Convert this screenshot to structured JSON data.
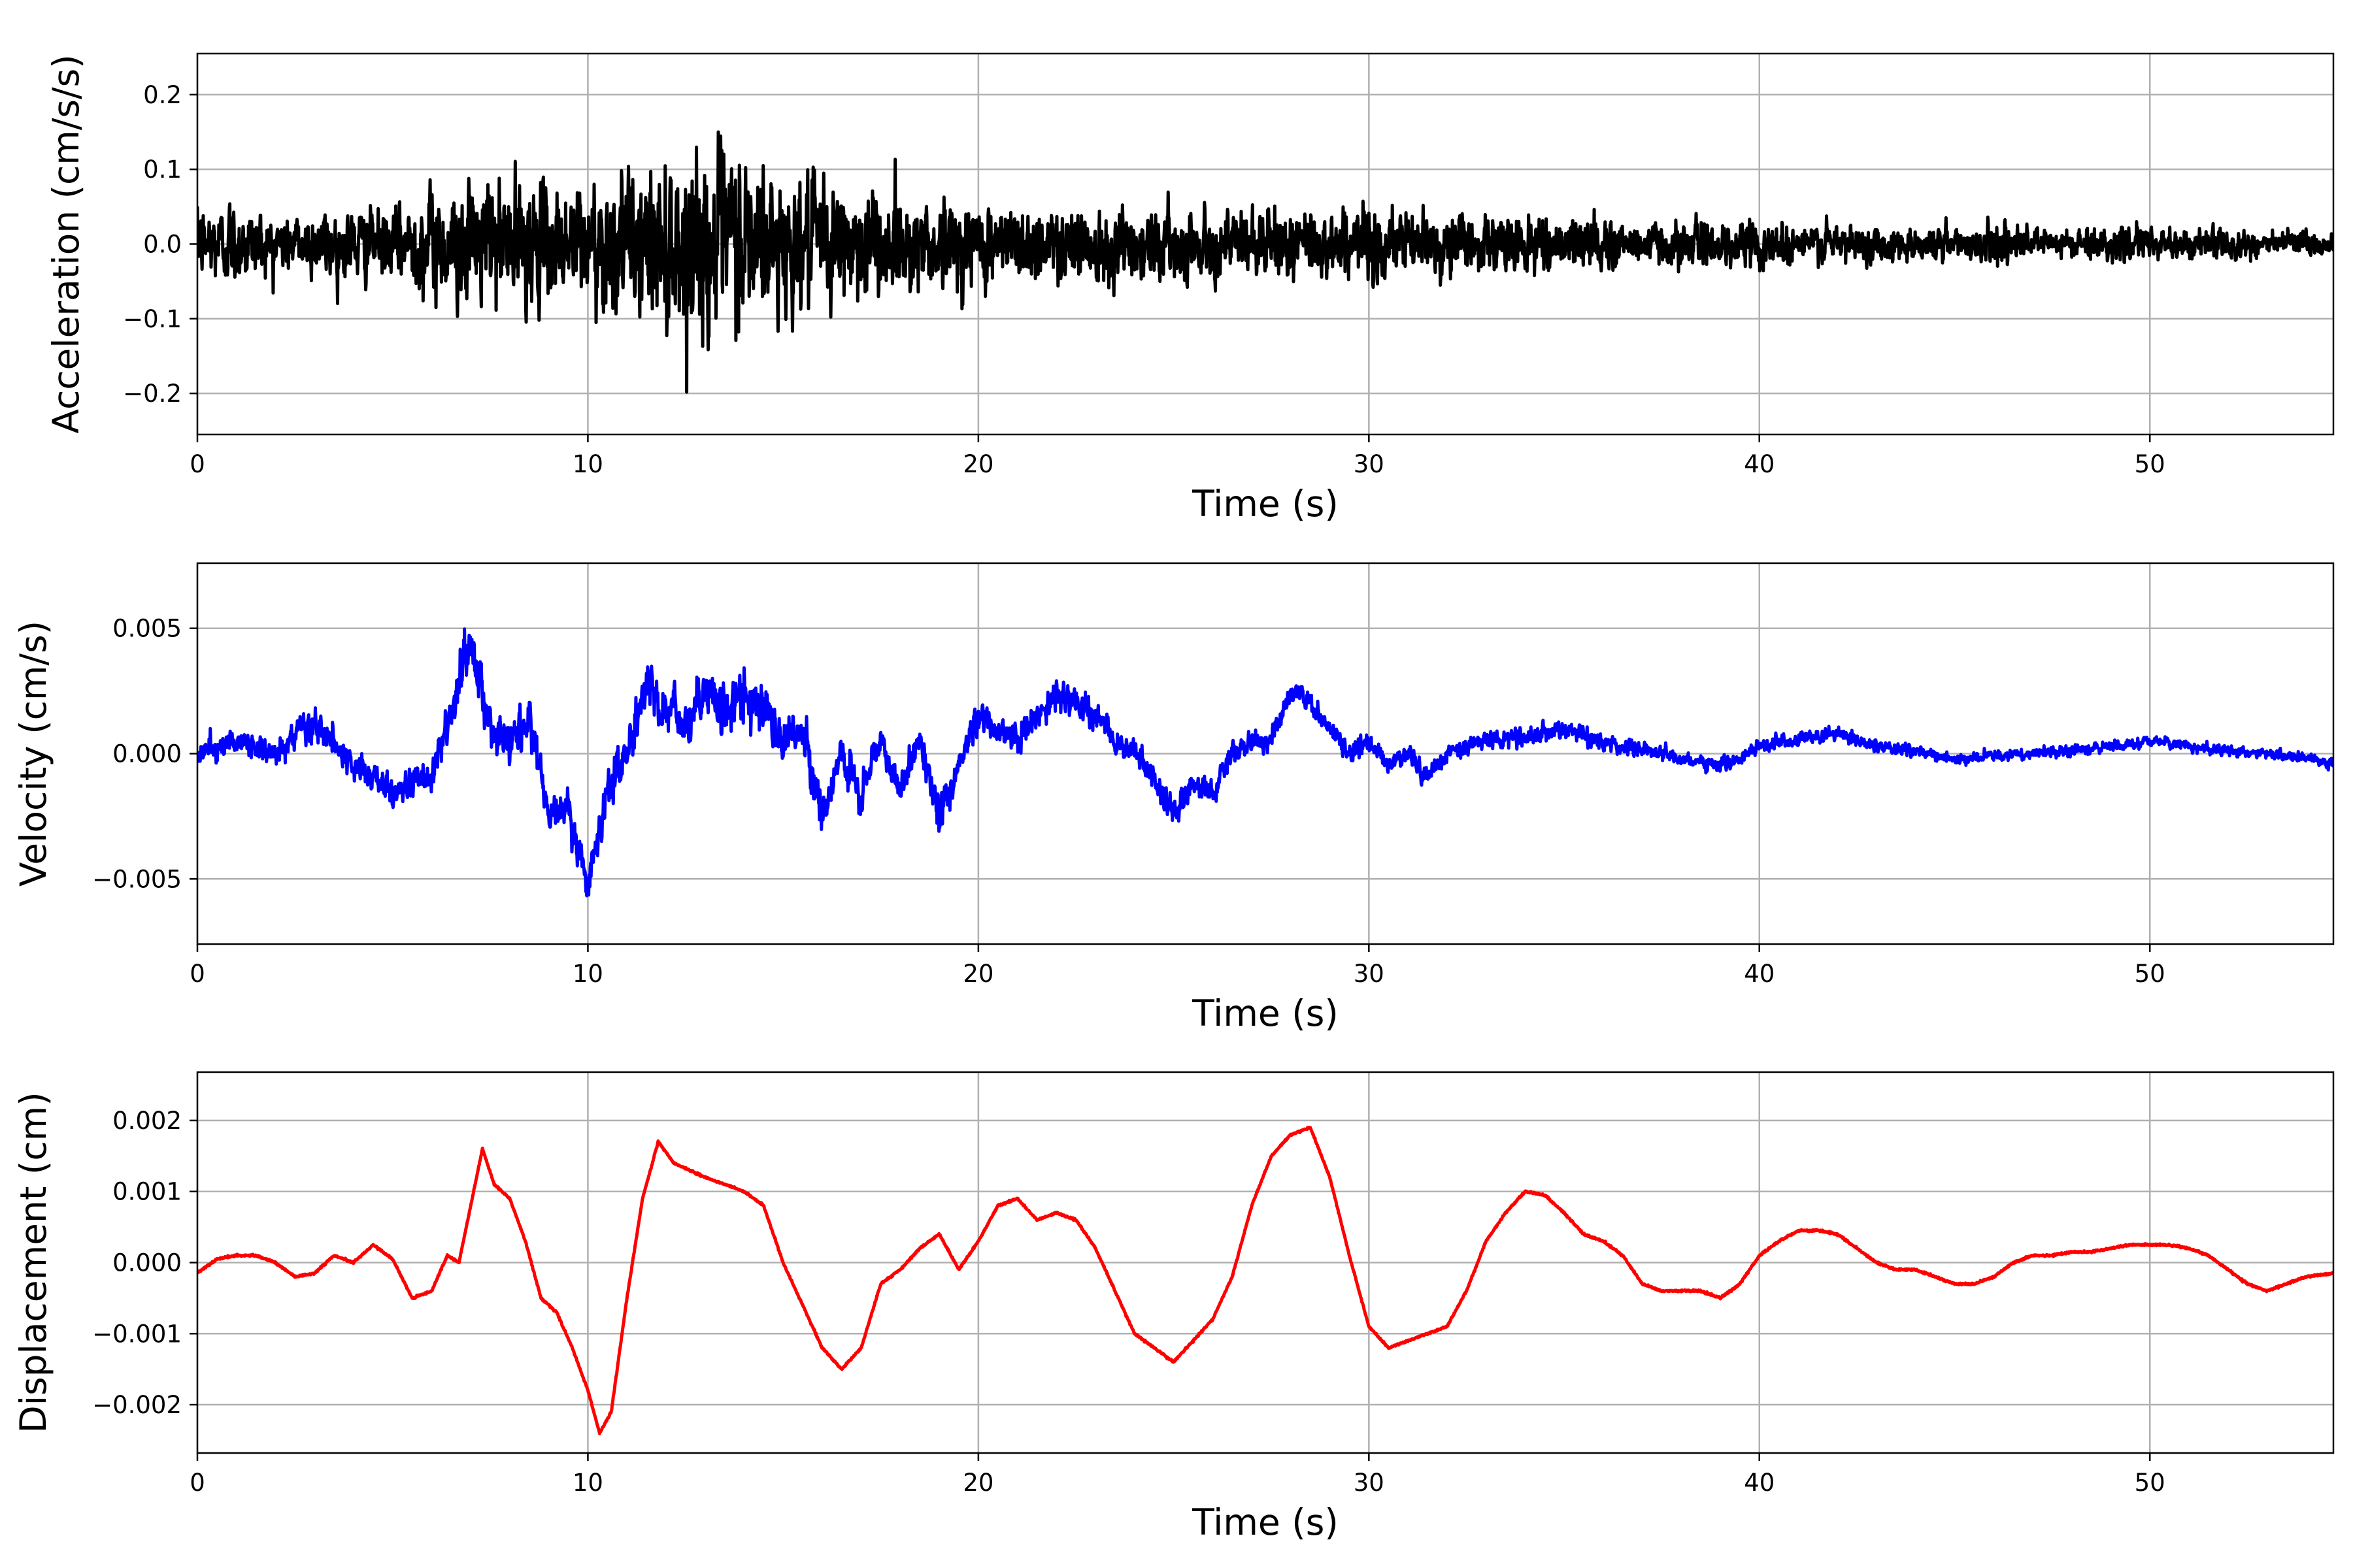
{
  "chart_data": [
    {
      "type": "line",
      "title": "",
      "xlabel": "Time (s)",
      "ylabel": "Acceleration (cm/s/s)",
      "xlim": [
        0,
        54.7
      ],
      "ylim": [
        -0.255,
        0.255
      ],
      "xticks": [
        0,
        10,
        20,
        30,
        40,
        50
      ],
      "xtick_labels": [
        "0",
        "10",
        "20",
        "30",
        "40",
        "50"
      ],
      "yticks": [
        -0.2,
        -0.1,
        0.0,
        0.1,
        0.2
      ],
      "ytick_labels": [
        "−0.2",
        "−0.1",
        "0.0",
        "0.1",
        "0.2"
      ],
      "grid": true,
      "color": "#000000",
      "series": [
        {
          "x": [
            0,
            1,
            2,
            3,
            4,
            5,
            6,
            7,
            8,
            9,
            10,
            11,
            12,
            13,
            14,
            15,
            16,
            17,
            18,
            19,
            20,
            21,
            22,
            23,
            24,
            25,
            26,
            27,
            28,
            29,
            30,
            31,
            32,
            33,
            34,
            35,
            36,
            37,
            38,
            39,
            40,
            41,
            42,
            43,
            44,
            45,
            46,
            47,
            48,
            49,
            50,
            51,
            52,
            53,
            54,
            54.7
          ],
          "y_envelope": [
            0.07,
            0.1,
            0.06,
            0.07,
            0.08,
            0.07,
            0.12,
            0.13,
            0.14,
            0.12,
            0.15,
            0.14,
            0.18,
            0.2,
            0.22,
            0.15,
            0.14,
            0.13,
            0.11,
            0.1,
            0.1,
            0.09,
            0.08,
            0.09,
            0.08,
            0.07,
            0.07,
            0.07,
            0.08,
            0.07,
            0.08,
            0.07,
            0.07,
            0.06,
            0.06,
            0.06,
            0.06,
            0.05,
            0.05,
            0.05,
            0.05,
            0.045,
            0.045,
            0.04,
            0.04,
            0.04,
            0.04,
            0.035,
            0.035,
            0.035,
            0.035,
            0.035,
            0.035,
            0.03,
            0.03,
            0.03
          ]
        }
      ]
    },
    {
      "type": "line",
      "title": "",
      "xlabel": "Time (s)",
      "ylabel": "Velocity (cm/s)",
      "xlim": [
        0,
        54.7
      ],
      "ylim": [
        -0.0076,
        0.0076
      ],
      "xticks": [
        0,
        10,
        20,
        30,
        40,
        50
      ],
      "xtick_labels": [
        "0",
        "10",
        "20",
        "30",
        "40",
        "50"
      ],
      "yticks": [
        -0.005,
        0.0,
        0.005
      ],
      "ytick_labels": [
        "−0.005",
        "0.000",
        "0.005"
      ],
      "grid": true,
      "color": "#0000ff",
      "series": [
        {
          "x": [
            0,
            1,
            2,
            3,
            4,
            5,
            6,
            6.5,
            7,
            7.5,
            8,
            8.5,
            9,
            9.5,
            10,
            10.5,
            11,
            11.5,
            12,
            12.5,
            13,
            13.5,
            14,
            14.5,
            15,
            15.5,
            16,
            16.5,
            17,
            17.5,
            18,
            18.5,
            19,
            19.5,
            20,
            20.5,
            21,
            21.5,
            22,
            22.5,
            23,
            23.5,
            24,
            24.5,
            25,
            25.5,
            26,
            26.5,
            27,
            27.5,
            28,
            28.5,
            29,
            29.5,
            30,
            30.5,
            31,
            31.5,
            32,
            33,
            34,
            35,
            36,
            37,
            38,
            39,
            40,
            41,
            42,
            43,
            44,
            45,
            46,
            47,
            48,
            49,
            50,
            51,
            52,
            53,
            54,
            54.7
          ],
          "y": [
            0.0,
            0.0005,
            0.0,
            0.0012,
            -0.0005,
            -0.0015,
            -0.001,
            0.0015,
            0.0045,
            0.001,
            0.0005,
            0.0015,
            -0.0025,
            -0.002,
            -0.0055,
            -0.0015,
            0.0,
            0.0025,
            0.002,
            0.001,
            0.0025,
            0.0015,
            0.0025,
            0.0015,
            0.0005,
            0.001,
            -0.0025,
            0.0,
            -0.0015,
            0.0005,
            -0.0015,
            0.0005,
            -0.0025,
            -0.0005,
            0.0015,
            0.001,
            0.0005,
            0.0015,
            0.0025,
            0.002,
            0.0015,
            0.0005,
            0.0,
            -0.001,
            -0.0025,
            -0.001,
            -0.0015,
            0.0,
            0.0005,
            0.0005,
            0.0025,
            0.002,
            0.001,
            0.0,
            0.0005,
            -0.0005,
            0.0,
            -0.001,
            0.0,
            0.0005,
            0.0007,
            0.001,
            0.0004,
            0.0002,
            -0.0002,
            -0.0005,
            0.0003,
            0.0006,
            0.0008,
            0.0003,
            0.0001,
            -0.0002,
            -0.0001,
            0.0,
            0.0001,
            0.0003,
            0.0005,
            0.0003,
            0.0001,
            0.0,
            -0.0002,
            -0.0004
          ],
          "y_noise": [
            0.0007,
            0.0007,
            0.0007,
            0.0008,
            0.0008,
            0.0008,
            0.001,
            0.0012,
            0.0015,
            0.0014,
            0.0012,
            0.0012,
            0.0012,
            0.0012,
            0.0014,
            0.0013,
            0.0012,
            0.0014,
            0.0015,
            0.0015,
            0.0016,
            0.0016,
            0.0016,
            0.0015,
            0.0014,
            0.0012,
            0.0011,
            0.001,
            0.001,
            0.0009,
            0.0009,
            0.0009,
            0.001,
            0.0009,
            0.0009,
            0.0008,
            0.0008,
            0.0008,
            0.0008,
            0.0008,
            0.0007,
            0.0007,
            0.0007,
            0.0007,
            0.0008,
            0.0007,
            0.0007,
            0.0007,
            0.0006,
            0.0006,
            0.0007,
            0.0006,
            0.0006,
            0.0006,
            0.0006,
            0.0006,
            0.0006,
            0.0006,
            0.0005,
            0.0005,
            0.0005,
            0.0005,
            0.0005,
            0.0004,
            0.0004,
            0.0004,
            0.0004,
            0.0004,
            0.0004,
            0.0004,
            0.0003,
            0.0003,
            0.0003,
            0.0003,
            0.0003,
            0.0003,
            0.0003,
            0.0003,
            0.0003,
            0.0003,
            0.0003,
            0.0003
          ]
        }
      ]
    },
    {
      "type": "line",
      "title": "",
      "xlabel": "Time (s)",
      "ylabel": "Displacement (cm)",
      "xlim": [
        0,
        54.7
      ],
      "ylim": [
        -0.00268,
        0.00268
      ],
      "xticks": [
        0,
        10,
        20,
        30,
        40,
        50
      ],
      "xtick_labels": [
        "0",
        "10",
        "20",
        "30",
        "40",
        "50"
      ],
      "yticks": [
        -0.002,
        -0.001,
        0.0,
        0.001,
        0.002
      ],
      "ytick_labels": [
        "−0.002",
        "−0.001",
        "0.000",
        "0.001",
        "0.002"
      ],
      "grid": true,
      "color": "#ff0000",
      "series": [
        {
          "x": [
            0,
            0.5,
            1,
            1.5,
            2,
            2.5,
            3,
            3.5,
            4,
            4.5,
            5,
            5.5,
            6,
            6.4,
            6.7,
            7.0,
            7.3,
            7.6,
            8,
            8.4,
            8.8,
            9.2,
            9.6,
            10.0,
            10.3,
            10.6,
            11,
            11.4,
            11.8,
            12.2,
            12.6,
            13,
            13.5,
            14,
            14.5,
            15,
            15.5,
            16,
            16.5,
            17,
            17.5,
            18,
            18.5,
            19,
            19.5,
            20,
            20.5,
            21,
            21.5,
            22,
            22.5,
            23,
            23.5,
            24,
            24.5,
            25,
            25.5,
            26,
            26.5,
            27,
            27.5,
            28,
            28.5,
            29,
            29.5,
            30,
            30.5,
            31,
            31.5,
            32,
            32.5,
            33,
            33.5,
            34,
            34.5,
            35,
            35.5,
            36,
            36.5,
            37,
            37.5,
            38,
            38.5,
            39,
            39.5,
            40,
            40.5,
            41,
            41.5,
            42,
            42.5,
            43,
            43.5,
            44,
            44.5,
            45,
            45.5,
            46,
            46.5,
            47,
            47.5,
            48,
            48.5,
            49,
            49.5,
            50,
            50.5,
            51,
            51.5,
            52,
            52.5,
            53,
            53.5,
            54,
            54.7
          ],
          "y": [
            -0.00015,
            5e-05,
            0.0001,
            0.0001,
            0.0,
            -0.0002,
            -0.00015,
            0.0001,
            0.0,
            0.00025,
            5e-05,
            -0.0005,
            -0.0004,
            0.0001,
            0.0,
            0.0008,
            0.0016,
            0.0011,
            0.0009,
            0.0003,
            -0.0005,
            -0.0007,
            -0.0012,
            -0.0018,
            -0.0024,
            -0.0021,
            -0.0005,
            0.0009,
            0.0017,
            0.0014,
            0.0013,
            0.0012,
            0.0011,
            0.001,
            0.0008,
            0.0,
            -0.0006,
            -0.0012,
            -0.0015,
            -0.0012,
            -0.0003,
            -0.0001,
            0.0002,
            0.0004,
            -0.0001,
            0.0003,
            0.0008,
            0.0009,
            0.0006,
            0.0007,
            0.0006,
            0.0002,
            -0.0004,
            -0.001,
            -0.0012,
            -0.0014,
            -0.0011,
            -0.0008,
            -0.0002,
            0.0008,
            0.0015,
            0.0018,
            0.0019,
            0.0012,
            0.0001,
            -0.0009,
            -0.0012,
            -0.0011,
            -0.001,
            -0.0009,
            -0.0004,
            0.0003,
            0.0007,
            0.001,
            0.00095,
            0.0007,
            0.0004,
            0.0003,
            0.0001,
            -0.0003,
            -0.0004,
            -0.0004,
            -0.0004,
            -0.0005,
            -0.0003,
            0.0001,
            0.0003,
            0.00045,
            0.00045,
            0.0004,
            0.0002,
            0.0,
            -0.0001,
            -0.0001,
            -0.0002,
            -0.0003,
            -0.0003,
            -0.0002,
            0.0,
            0.0001,
            0.0001,
            0.00015,
            0.00015,
            0.0002,
            0.00025,
            0.00025,
            0.00025,
            0.0002,
            0.0001,
            -0.0001,
            -0.0003,
            -0.0004,
            -0.0003,
            -0.0002,
            -0.00015
          ]
        }
      ]
    }
  ]
}
